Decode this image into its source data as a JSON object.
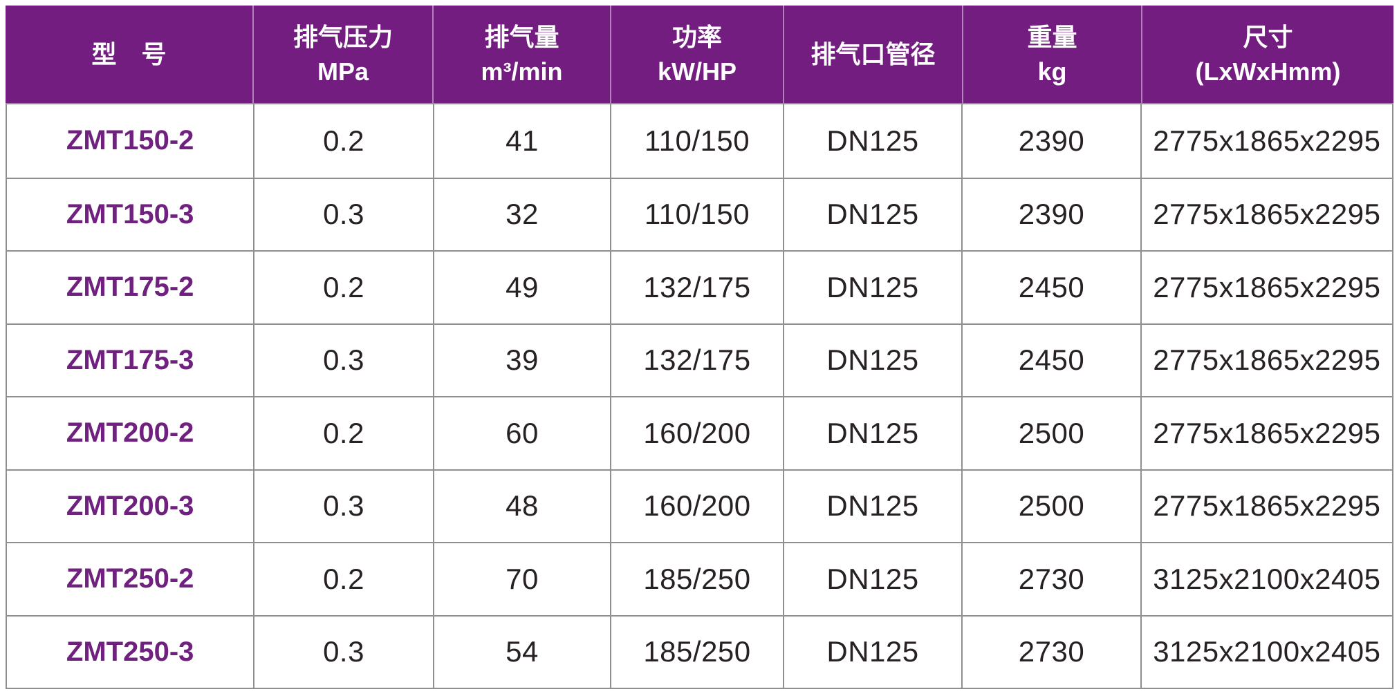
{
  "colors": {
    "header_background": "#731d81",
    "header_text": "#ffffff",
    "header_divider": "rgba(255,255,255,0.45)",
    "grid_line": "#8f8f8f",
    "model_text": "#70207f",
    "body_text": "#272122",
    "page_background": "#ffffff"
  },
  "table": {
    "columns": [
      {
        "id": "model",
        "line1": "型　号",
        "line2": ""
      },
      {
        "id": "pressure",
        "line1": "排气压力",
        "line2": "MPa"
      },
      {
        "id": "capacity",
        "line1": "排气量",
        "line2": "m³/min"
      },
      {
        "id": "power",
        "line1": "功率",
        "line2": "kW/HP"
      },
      {
        "id": "outlet",
        "line1": "排气口管径",
        "line2": ""
      },
      {
        "id": "weight",
        "line1": "重量",
        "line2": "kg"
      },
      {
        "id": "dimensions",
        "line1": "尺寸",
        "line2": "(LxWxHmm)"
      }
    ],
    "rows": [
      {
        "model": "ZMT150-2",
        "pressure": "0.2",
        "capacity": "41",
        "power": "110/150",
        "outlet": "DN125",
        "weight": "2390",
        "dimensions": "2775x1865x2295"
      },
      {
        "model": "ZMT150-3",
        "pressure": "0.3",
        "capacity": "32",
        "power": "110/150",
        "outlet": "DN125",
        "weight": "2390",
        "dimensions": "2775x1865x2295"
      },
      {
        "model": "ZMT175-2",
        "pressure": "0.2",
        "capacity": "49",
        "power": "132/175",
        "outlet": "DN125",
        "weight": "2450",
        "dimensions": "2775x1865x2295"
      },
      {
        "model": "ZMT175-3",
        "pressure": "0.3",
        "capacity": "39",
        "power": "132/175",
        "outlet": "DN125",
        "weight": "2450",
        "dimensions": "2775x1865x2295"
      },
      {
        "model": "ZMT200-2",
        "pressure": "0.2",
        "capacity": "60",
        "power": "160/200",
        "outlet": "DN125",
        "weight": "2500",
        "dimensions": "2775x1865x2295"
      },
      {
        "model": "ZMT200-3",
        "pressure": "0.3",
        "capacity": "48",
        "power": "160/200",
        "outlet": "DN125",
        "weight": "2500",
        "dimensions": "2775x1865x2295"
      },
      {
        "model": "ZMT250-2",
        "pressure": "0.2",
        "capacity": "70",
        "power": "185/250",
        "outlet": "DN125",
        "weight": "2730",
        "dimensions": "3125x2100x2405"
      },
      {
        "model": "ZMT250-3",
        "pressure": "0.3",
        "capacity": "54",
        "power": "185/250",
        "outlet": "DN125",
        "weight": "2730",
        "dimensions": "3125x2100x2405"
      }
    ]
  }
}
